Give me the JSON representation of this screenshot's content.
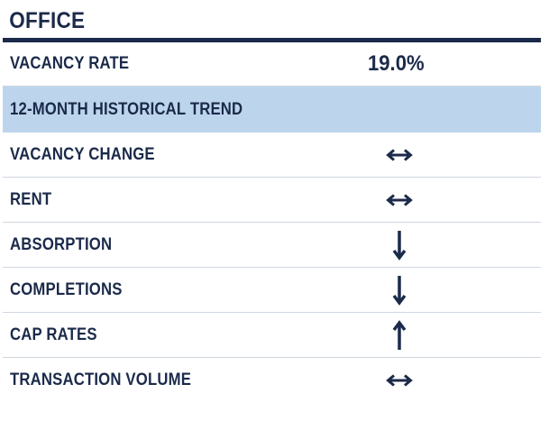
{
  "header": {
    "title": "OFFICE"
  },
  "vacancy": {
    "label": "VACANCY RATE",
    "value": "19.0%"
  },
  "trend_section": {
    "title": "12-MONTH HISTORICAL TREND"
  },
  "trends": [
    {
      "label": "VACANCY CHANGE",
      "trend": "flat",
      "icon": "left-right-arrow-icon"
    },
    {
      "label": "RENT",
      "trend": "flat",
      "icon": "left-right-arrow-icon"
    },
    {
      "label": "ABSORPTION",
      "trend": "down",
      "icon": "down-arrow-icon"
    },
    {
      "label": "COMPLETIONS",
      "trend": "down",
      "icon": "down-arrow-icon"
    },
    {
      "label": "CAP RATES",
      "trend": "up",
      "icon": "up-arrow-icon"
    },
    {
      "label": "TRANSACTION VOLUME",
      "trend": "flat",
      "icon": "left-right-arrow-icon"
    }
  ],
  "colors": {
    "navy": "#1b2a4a",
    "band": "#bcd5ec",
    "divider": "#cfd6df"
  }
}
